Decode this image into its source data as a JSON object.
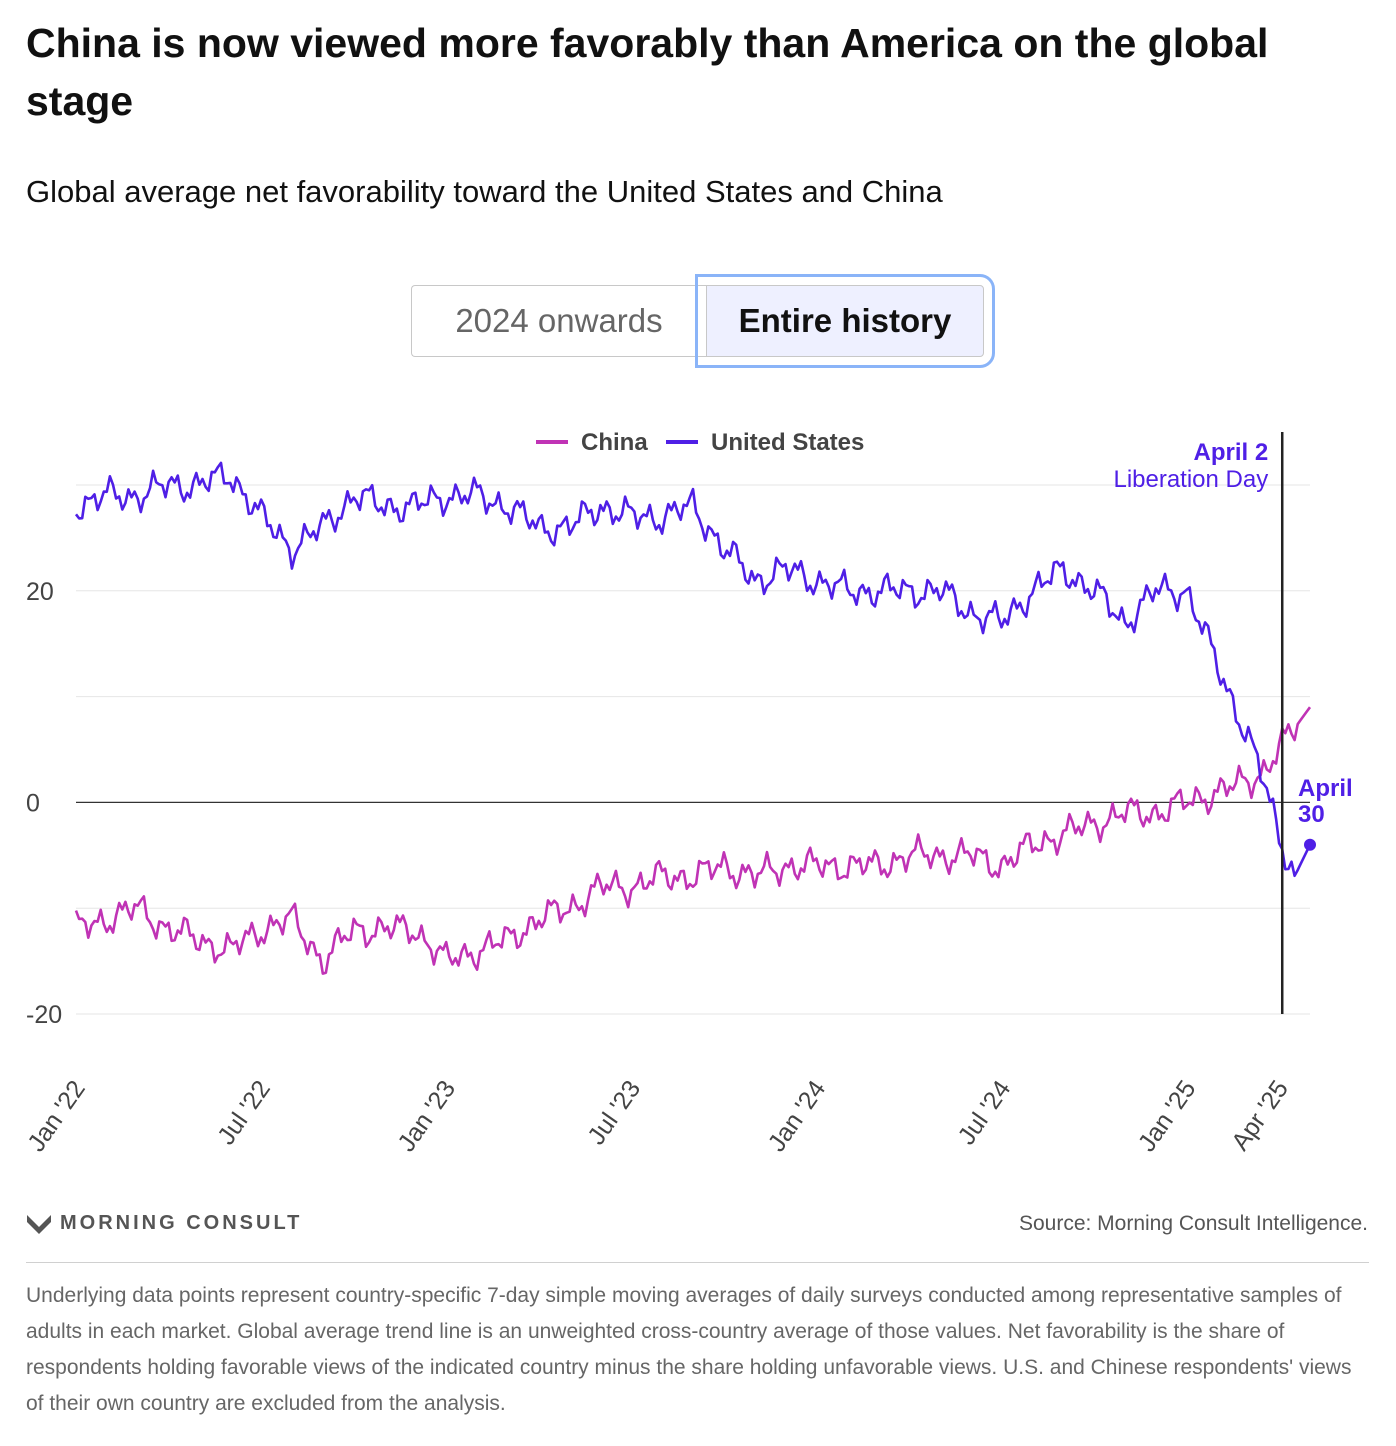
{
  "header": {
    "title": "China is now viewed more favorably than America on the global stage",
    "subtitle": "Global average net favorability toward the United States and China"
  },
  "toggle": {
    "options": [
      "2024 onwards",
      "Entire history"
    ],
    "selected": "Entire history"
  },
  "chart_data": {
    "type": "line",
    "title": "Global average net favorability toward the United States and China",
    "xlabel": "",
    "ylabel": "",
    "ylim": [
      -20,
      30
    ],
    "yticks": [
      20,
      0,
      -20
    ],
    "xticks": [
      "Jan '22",
      "Jul '22",
      "Jan '23",
      "Jul '23",
      "Jan '24",
      "Jul '24",
      "Jan '25",
      "Apr '25"
    ],
    "xtick_months": [
      0,
      6,
      12,
      18,
      24,
      30,
      36,
      39
    ],
    "xlim_months": [
      0,
      40
    ],
    "legend": [
      "China",
      "United States"
    ],
    "legend_position": "top-center",
    "series": [
      {
        "name": "China",
        "color": "#c033b5",
        "x_months": [
          0,
          1,
          2,
          3,
          4,
          5,
          6,
          7,
          8,
          9,
          10,
          11,
          12,
          13,
          14,
          15,
          16,
          17,
          18,
          19,
          20,
          21,
          22,
          23,
          24,
          25,
          26,
          27,
          28,
          29,
          30,
          31,
          32,
          33,
          34,
          35,
          36,
          37,
          38,
          38.5,
          39,
          39.5,
          40
        ],
        "values": [
          -12,
          -11,
          -10,
          -12,
          -13,
          -14,
          -12,
          -11,
          -15,
          -12,
          -12,
          -12,
          -15,
          -14,
          -13,
          -11,
          -10,
          -8,
          -8,
          -7,
          -7,
          -6,
          -7,
          -6,
          -6,
          -6,
          -6,
          -5,
          -5,
          -5,
          -6,
          -4,
          -3,
          -2,
          -1,
          -1,
          0,
          1,
          2,
          3,
          5,
          7,
          9
        ]
      },
      {
        "name": "United States",
        "color": "#4f1fe6",
        "x_months": [
          0,
          1,
          2,
          3,
          4,
          5,
          6,
          7,
          8,
          9,
          10,
          11,
          12,
          13,
          14,
          15,
          16,
          17,
          18,
          19,
          20,
          21,
          22,
          23,
          24,
          25,
          26,
          27,
          28,
          29,
          30,
          31,
          32,
          33,
          34,
          35,
          36,
          37,
          38,
          38.5,
          39,
          39.5,
          40
        ],
        "values": [
          28,
          29,
          29,
          30,
          30,
          31,
          27,
          24,
          26,
          29,
          28,
          28,
          29,
          29,
          28,
          26,
          26,
          28,
          27,
          27,
          28,
          24,
          21,
          22,
          21,
          20,
          20,
          20,
          20,
          18,
          17,
          20,
          22,
          20,
          17,
          20,
          20,
          13,
          6,
          2,
          -3,
          -7,
          -4
        ]
      }
    ],
    "annotations": [
      {
        "label_bold": "April 2",
        "label": "Liberation Day",
        "x_month": 39.1
      },
      {
        "label_bold": "April 30",
        "x_month": 40,
        "series": "United States",
        "value": -4
      }
    ],
    "annotation_lines": [
      "April",
      "30"
    ]
  },
  "footer": {
    "brand": "MORNING CONSULT",
    "source": "Source: Morning Consult Intelligence.",
    "notes": "Underlying data points represent country-specific 7-day simple moving averages of daily surveys conducted among representative samples of adults in each market. Global average trend line is an unweighted cross-country average of those values. Net favorability is the share of respondents holding favorable views of the indicated country minus the share holding unfavorable views. U.S. and Chinese respondents' views of their own country are excluded from the analysis."
  }
}
